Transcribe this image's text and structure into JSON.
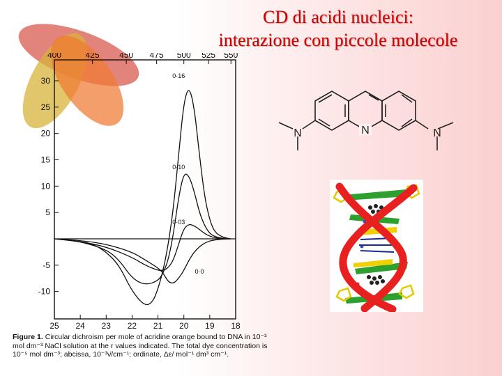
{
  "title": {
    "line1": "CD di acidi nucleici:",
    "line2": "interazione con piccole molecole"
  },
  "chart_data": {
    "type": "line",
    "x_top_ticks": [
      "400",
      "425",
      "450",
      "475",
      "500",
      "525",
      "550"
    ],
    "x_bottom_ticks": [
      "25",
      "24",
      "23",
      "22",
      "21",
      "20",
      "19",
      "18"
    ],
    "y_ticks": [
      "30",
      "25",
      "20",
      "15",
      "10",
      "5",
      "-5",
      "-10"
    ],
    "xlim": [
      25,
      18
    ],
    "ylim": [
      -14,
      32
    ],
    "series": [
      {
        "name": "0·16",
        "x": [
          25,
          24,
          23.5,
          23,
          22.5,
          22,
          21.5,
          21.2,
          21,
          20.8,
          20.6,
          20.4,
          20.2,
          20,
          19.8,
          19.6,
          19.4,
          19.2,
          19,
          18.8,
          18.5,
          18.2
        ],
        "values": [
          0,
          -0.5,
          -1,
          -2.5,
          -5,
          -10,
          -12.8,
          -12,
          -9.5,
          -6,
          -1,
          6,
          16,
          26,
          29,
          25,
          16,
          8,
          3.5,
          1.2,
          0.3,
          0
        ]
      },
      {
        "name": "0·10",
        "x": [
          25,
          24,
          23,
          22.5,
          22,
          21.5,
          21,
          20.8,
          20.6,
          20.4,
          20.2,
          20,
          19.8,
          19.6,
          19.4,
          19.2,
          19,
          18.8,
          18.5,
          18.2
        ],
        "values": [
          0,
          -0.5,
          -2,
          -4,
          -7.5,
          -8.8,
          -8,
          -6.5,
          -4,
          1,
          8,
          12.5,
          12,
          9,
          5,
          2.5,
          1,
          0.4,
          0.1,
          0
        ]
      },
      {
        "name": "0·03",
        "x": [
          25,
          24,
          23,
          22,
          21.5,
          21,
          20.8,
          20.6,
          20.4,
          20.2,
          20,
          19.8,
          19.6,
          19.4,
          19.2,
          19,
          18.8,
          18.5,
          18.2
        ],
        "values": [
          0,
          -0.5,
          -1.5,
          -3.5,
          -5,
          -6,
          -6,
          -5.5,
          -4,
          -1,
          2,
          2.8,
          2.5,
          1.8,
          1,
          0.5,
          0.2,
          0.05,
          0
        ]
      },
      {
        "name": "0·0",
        "x": [
          25,
          24,
          23,
          22,
          21.5,
          21,
          20.8,
          20.6,
          20.4,
          20.2,
          20,
          19.8,
          19.6,
          19.4,
          19.2,
          19,
          18.8,
          18.5,
          18.2
        ],
        "values": [
          0,
          -0.3,
          -1,
          -2.5,
          -4,
          -5.5,
          -6.5,
          -8.2,
          -8.5,
          -7.5,
          -6,
          -4,
          -2.5,
          -1.5,
          -0.8,
          -0.4,
          -0.2,
          -0.05,
          0
        ]
      }
    ]
  },
  "caption": {
    "label": "Figure 1.",
    "text": "Circular dichroism per mole of acridine orange bound to DNA in 10⁻³ mol dm⁻³ NaCl solution at the r values indicated. The total dye concentration is 10⁻⁵ mol dm⁻³; abcissa, 10⁻³ν̄/cm⁻¹; ordinate, Δε/ mol⁻¹ dm³ cm⁻¹."
  },
  "molecule": {
    "atoms": [
      "N",
      "N",
      "N"
    ]
  },
  "colors": {
    "title": "#cc0000",
    "dna_backbone": "#e82020",
    "dna_sugar": "#f0d000",
    "dna_base_green": "#2ea02e"
  }
}
